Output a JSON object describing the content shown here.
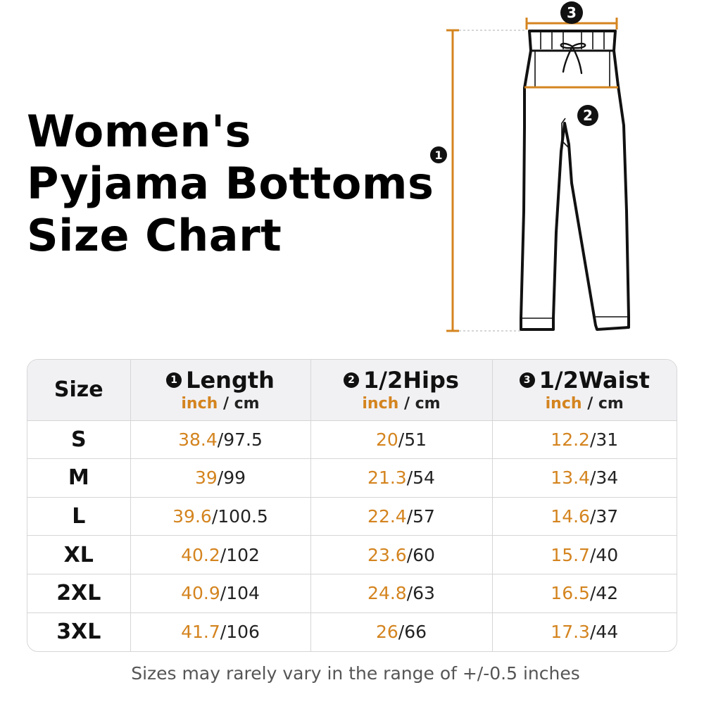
{
  "title": {
    "line1": "Women's",
    "line2": "Pyjama Bottoms",
    "line3": "Size Chart"
  },
  "diagram": {
    "markers": [
      "1",
      "2",
      "3"
    ],
    "line_color": "#d4841f",
    "badge_color": "#111111"
  },
  "table": {
    "size_header": "Size",
    "columns": [
      {
        "marker": "1",
        "name": "Length",
        "unit_inch": "inch",
        "unit_sep": " / ",
        "unit_cm": "cm"
      },
      {
        "marker": "2",
        "name": "1/2Hips",
        "unit_inch": "inch",
        "unit_sep": " / ",
        "unit_cm": "cm"
      },
      {
        "marker": "3",
        "name": "1/2Waist",
        "unit_inch": "inch",
        "unit_sep": " / ",
        "unit_cm": "cm"
      }
    ],
    "rows": [
      {
        "size": "S",
        "length": [
          "38.4",
          "/97.5"
        ],
        "hips": [
          "20",
          "/51"
        ],
        "waist": [
          "12.2",
          "/31"
        ]
      },
      {
        "size": "M",
        "length": [
          "39",
          "/99"
        ],
        "hips": [
          "21.3",
          "/54"
        ],
        "waist": [
          "13.4",
          "/34"
        ]
      },
      {
        "size": "L",
        "length": [
          "39.6",
          "/100.5"
        ],
        "hips": [
          "22.4",
          "/57"
        ],
        "waist": [
          "14.6",
          "/37"
        ]
      },
      {
        "size": "XL",
        "length": [
          "40.2",
          "/102"
        ],
        "hips": [
          "23.6",
          "/60"
        ],
        "waist": [
          "15.7",
          "/40"
        ]
      },
      {
        "size": "2XL",
        "length": [
          "40.9",
          "/104"
        ],
        "hips": [
          "24.8",
          "/63"
        ],
        "waist": [
          "16.5",
          "/42"
        ]
      },
      {
        "size": "3XL",
        "length": [
          "41.7",
          "/106"
        ],
        "hips": [
          "26",
          "/66"
        ],
        "waist": [
          "17.3",
          "/44"
        ]
      }
    ]
  },
  "footnote": "Sizes may rarely vary in the range of +/-0.5 inches",
  "colors": {
    "accent": "#d4841f",
    "header_bg": "#f1f1f4",
    "border": "#d6d6d6",
    "text": "#111111"
  }
}
